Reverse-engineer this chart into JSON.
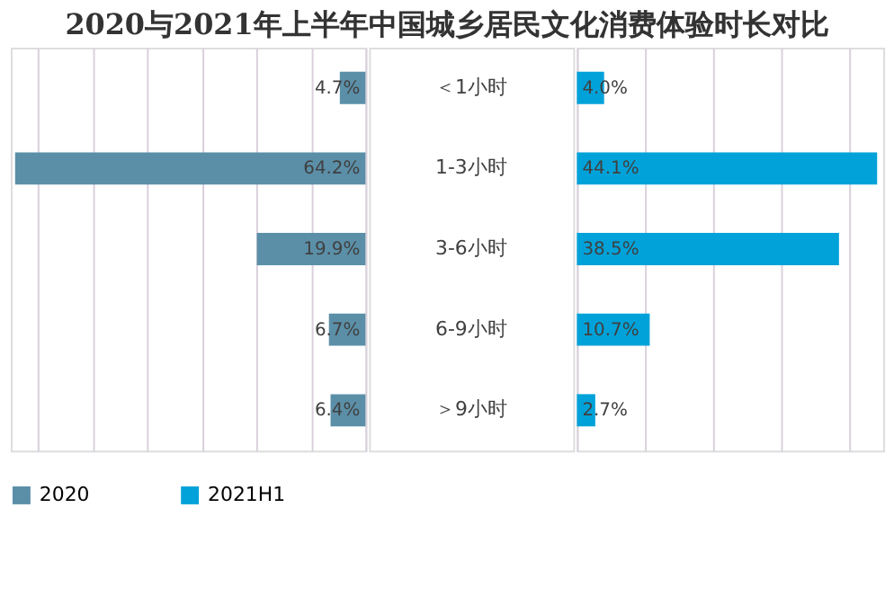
{
  "chart_data": [
    {
      "type": "bar",
      "orientation": "horizontal",
      "title": "2020与2021年上半年中国城乡居民文化消费体验时长对比",
      "categories": [
        "＜1小时",
        "1-3小时",
        "3-6小时",
        "6-9小时",
        "＞9小时"
      ],
      "series": [
        {
          "name": "2020",
          "color": "#5b8fa8",
          "values": [
            4.7,
            64.2,
            19.9,
            6.7,
            6.4
          ],
          "value_labels": [
            "4.7%",
            "64.2%",
            "19.9%",
            "6.7%",
            "6.4%"
          ]
        }
      ],
      "grid": "x",
      "legend": "bottom",
      "tick_labels": "y"
    },
    {
      "type": "bar",
      "orientation": "horizontal",
      "series": [
        {
          "name": "2021H1",
          "color": "#00a2d9",
          "values": [
            4.0,
            44.1,
            38.5,
            10.7,
            2.7
          ],
          "value_labels": [
            "4.0%",
            "44.1%",
            "38.5%",
            "10.7%",
            "2.7%"
          ]
        }
      ],
      "grid": "x",
      "legend": "bottom",
      "tick_labels": false
    }
  ]
}
